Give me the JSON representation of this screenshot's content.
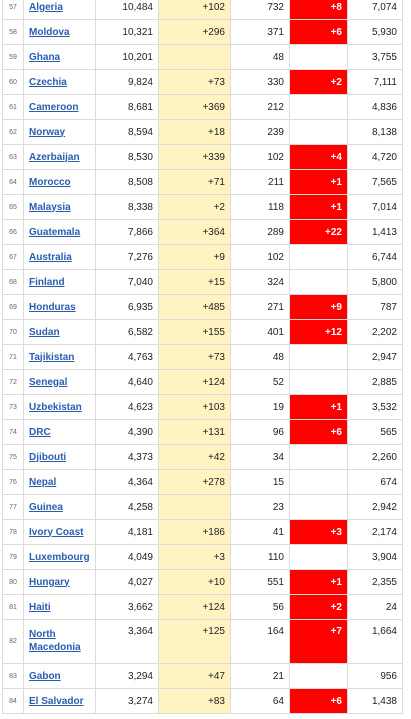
{
  "table": {
    "rows": [
      {
        "rank": "57",
        "country": "Algeria",
        "total_cases": "10,484",
        "new_cases": "+102",
        "total_deaths": "732",
        "new_deaths": "+8",
        "recovered": "7,074"
      },
      {
        "rank": "58",
        "country": "Moldova",
        "total_cases": "10,321",
        "new_cases": "+296",
        "total_deaths": "371",
        "new_deaths": "+6",
        "recovered": "5,930"
      },
      {
        "rank": "59",
        "country": "Ghana",
        "total_cases": "10,201",
        "new_cases": "",
        "total_deaths": "48",
        "new_deaths": "",
        "recovered": "3,755"
      },
      {
        "rank": "60",
        "country": "Czechia",
        "total_cases": "9,824",
        "new_cases": "+73",
        "total_deaths": "330",
        "new_deaths": "+2",
        "recovered": "7,111"
      },
      {
        "rank": "61",
        "country": "Cameroon",
        "total_cases": "8,681",
        "new_cases": "+369",
        "total_deaths": "212",
        "new_deaths": "",
        "recovered": "4,836"
      },
      {
        "rank": "62",
        "country": "Norway",
        "total_cases": "8,594",
        "new_cases": "+18",
        "total_deaths": "239",
        "new_deaths": "",
        "recovered": "8,138"
      },
      {
        "rank": "63",
        "country": "Azerbaijan",
        "total_cases": "8,530",
        "new_cases": "+339",
        "total_deaths": "102",
        "new_deaths": "+4",
        "recovered": "4,720"
      },
      {
        "rank": "64",
        "country": "Morocco",
        "total_cases": "8,508",
        "new_cases": "+71",
        "total_deaths": "211",
        "new_deaths": "+1",
        "recovered": "7,565"
      },
      {
        "rank": "65",
        "country": "Malaysia",
        "total_cases": "8,338",
        "new_cases": "+2",
        "total_deaths": "118",
        "new_deaths": "+1",
        "recovered": "7,014"
      },
      {
        "rank": "66",
        "country": "Guatemala",
        "total_cases": "7,866",
        "new_cases": "+364",
        "total_deaths": "289",
        "new_deaths": "+22",
        "recovered": "1,413"
      },
      {
        "rank": "67",
        "country": "Australia",
        "total_cases": "7,276",
        "new_cases": "+9",
        "total_deaths": "102",
        "new_deaths": "",
        "recovered": "6,744"
      },
      {
        "rank": "68",
        "country": "Finland",
        "total_cases": "7,040",
        "new_cases": "+15",
        "total_deaths": "324",
        "new_deaths": "",
        "recovered": "5,800"
      },
      {
        "rank": "69",
        "country": "Honduras",
        "total_cases": "6,935",
        "new_cases": "+485",
        "total_deaths": "271",
        "new_deaths": "+9",
        "recovered": "787"
      },
      {
        "rank": "70",
        "country": "Sudan",
        "total_cases": "6,582",
        "new_cases": "+155",
        "total_deaths": "401",
        "new_deaths": "+12",
        "recovered": "2,202"
      },
      {
        "rank": "71",
        "country": "Tajikistan",
        "total_cases": "4,763",
        "new_cases": "+73",
        "total_deaths": "48",
        "new_deaths": "",
        "recovered": "2,947"
      },
      {
        "rank": "72",
        "country": "Senegal",
        "total_cases": "4,640",
        "new_cases": "+124",
        "total_deaths": "52",
        "new_deaths": "",
        "recovered": "2,885"
      },
      {
        "rank": "73",
        "country": "Uzbekistan",
        "total_cases": "4,623",
        "new_cases": "+103",
        "total_deaths": "19",
        "new_deaths": "+1",
        "recovered": "3,532"
      },
      {
        "rank": "74",
        "country": "DRC",
        "total_cases": "4,390",
        "new_cases": "+131",
        "total_deaths": "96",
        "new_deaths": "+6",
        "recovered": "565"
      },
      {
        "rank": "75",
        "country": "Djibouti",
        "total_cases": "4,373",
        "new_cases": "+42",
        "total_deaths": "34",
        "new_deaths": "",
        "recovered": "2,260"
      },
      {
        "rank": "76",
        "country": "Nepal",
        "total_cases": "4,364",
        "new_cases": "+278",
        "total_deaths": "15",
        "new_deaths": "",
        "recovered": "674"
      },
      {
        "rank": "77",
        "country": "Guinea",
        "total_cases": "4,258",
        "new_cases": "",
        "total_deaths": "23",
        "new_deaths": "",
        "recovered": "2,942"
      },
      {
        "rank": "78",
        "country": "Ivory Coast",
        "total_cases": "4,181",
        "new_cases": "+186",
        "total_deaths": "41",
        "new_deaths": "+3",
        "recovered": "2,174"
      },
      {
        "rank": "79",
        "country": "Luxembourg",
        "total_cases": "4,049",
        "new_cases": "+3",
        "total_deaths": "110",
        "new_deaths": "",
        "recovered": "3,904"
      },
      {
        "rank": "80",
        "country": "Hungary",
        "total_cases": "4,027",
        "new_cases": "+10",
        "total_deaths": "551",
        "new_deaths": "+1",
        "recovered": "2,355"
      },
      {
        "rank": "81",
        "country": "Haiti",
        "total_cases": "3,662",
        "new_cases": "+124",
        "total_deaths": "56",
        "new_deaths": "+2",
        "recovered": "24"
      },
      {
        "rank": "82",
        "country": "North Macedonia",
        "total_cases": "3,364",
        "new_cases": "+125",
        "total_deaths": "164",
        "new_deaths": "+7",
        "recovered": "1,664"
      },
      {
        "rank": "83",
        "country": "Gabon",
        "total_cases": "3,294",
        "new_cases": "+47",
        "total_deaths": "21",
        "new_deaths": "",
        "recovered": "956"
      },
      {
        "rank": "84",
        "country": "El Salvador",
        "total_cases": "3,274",
        "new_cases": "+83",
        "total_deaths": "64",
        "new_deaths": "+6",
        "recovered": "1,438"
      }
    ]
  },
  "colors": {
    "new_cases_bg": "#fff3c2",
    "new_deaths_bg": "#ff0000",
    "link": "#2a5db0"
  }
}
